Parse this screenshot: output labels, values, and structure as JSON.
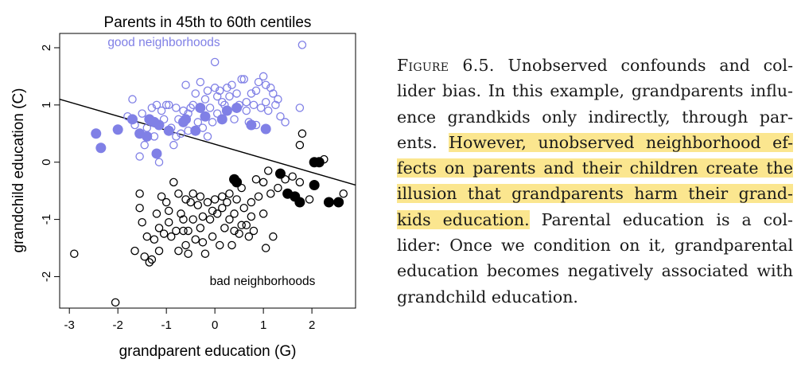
{
  "chart_data": {
    "type": "scatter",
    "title": "Parents in 45th to 60th centiles",
    "xlabel": "grandparent education (G)",
    "ylabel": "grandchild education (C)",
    "xlim": [
      -3.2,
      2.9
    ],
    "ylim": [
      -2.55,
      2.25
    ],
    "xticks": [
      -3,
      -2,
      -1,
      0,
      1,
      2
    ],
    "yticks": [
      -2,
      -1,
      0,
      1,
      2
    ],
    "xtick_labels": [
      "-3",
      "-2",
      "-1",
      "0",
      "1",
      "2"
    ],
    "ytick_labels": [
      "-2",
      "-1",
      "0",
      "1",
      "2"
    ],
    "annotations": [
      {
        "text": "good neighborhoods",
        "color": "#8080e6"
      },
      {
        "text": "bad neighborhoods",
        "color": "#000000"
      }
    ],
    "regression_line": {
      "x": [
        -3.2,
        2.9
      ],
      "y": [
        1.1,
        -0.4
      ]
    },
    "colors": {
      "good": "#8080e6",
      "bad": "#000000"
    },
    "series": [
      {
        "name": "good neighborhoods, parents in 45th-60th centiles",
        "marker": "filled",
        "color": "#8080e6",
        "points": [
          [
            -2.45,
            0.5
          ],
          [
            -2.35,
            0.25
          ],
          [
            -2.0,
            0.57
          ],
          [
            -1.7,
            0.75
          ],
          [
            -1.55,
            0.5
          ],
          [
            -1.4,
            0.45
          ],
          [
            -1.35,
            0.75
          ],
          [
            -1.25,
            0.7
          ],
          [
            -1.15,
            0.65
          ],
          [
            -1.2,
            0.15
          ],
          [
            -0.95,
            0.55
          ],
          [
            -0.65,
            0.7
          ],
          [
            -0.6,
            0.75
          ],
          [
            -0.4,
            0.55
          ],
          [
            -0.3,
            0.95
          ],
          [
            -0.2,
            0.8
          ],
          [
            0.15,
            0.75
          ],
          [
            0.25,
            0.9
          ],
          [
            0.45,
            0.95
          ],
          [
            0.75,
            0.65
          ],
          [
            1.05,
            0.58
          ]
        ]
      },
      {
        "name": "good neighborhoods",
        "marker": "open",
        "color": "#8080e6",
        "points": [
          [
            -1.8,
            0.8
          ],
          [
            -1.7,
            1.1
          ],
          [
            -1.65,
            0.65
          ],
          [
            -1.5,
            0.85
          ],
          [
            -1.45,
            0.3
          ],
          [
            -1.4,
            0.6
          ],
          [
            -1.3,
            0.95
          ],
          [
            -1.2,
            1.0
          ],
          [
            -1.1,
            0.9
          ],
          [
            -1.05,
            0.75
          ],
          [
            -1.0,
            1.0
          ],
          [
            -0.9,
            0.6
          ],
          [
            -0.85,
            0.3
          ],
          [
            -0.8,
            0.95
          ],
          [
            -0.75,
            0.75
          ],
          [
            -0.7,
            0.5
          ],
          [
            -0.65,
            0.9
          ],
          [
            -0.6,
            1.35
          ],
          [
            -0.55,
            0.55
          ],
          [
            -0.5,
            0.95
          ],
          [
            -0.45,
            1.0
          ],
          [
            -0.4,
            1.2
          ],
          [
            -0.35,
            0.7
          ],
          [
            -0.3,
            1.4
          ],
          [
            -0.25,
            0.6
          ],
          [
            -0.2,
            1.1
          ],
          [
            -0.15,
            1.25
          ],
          [
            -0.1,
            0.95
          ],
          [
            -0.05,
            0.7
          ],
          [
            0.0,
            1.75
          ],
          [
            0.0,
            1.3
          ],
          [
            0.05,
            1.15
          ],
          [
            0.1,
            1.25
          ],
          [
            0.15,
            1.05
          ],
          [
            0.2,
            1.0
          ],
          [
            0.3,
            1.15
          ],
          [
            0.35,
            1.35
          ],
          [
            0.4,
            0.75
          ],
          [
            0.45,
            1.2
          ],
          [
            0.5,
            1.0
          ],
          [
            0.55,
            1.45
          ],
          [
            0.6,
            1.45
          ],
          [
            0.65,
            1.05
          ],
          [
            0.7,
            0.7
          ],
          [
            0.75,
            1.2
          ],
          [
            0.8,
            1.0
          ],
          [
            0.85,
            1.25
          ],
          [
            0.9,
            1.4
          ],
          [
            0.95,
            0.95
          ],
          [
            1.0,
            1.5
          ],
          [
            1.05,
            1.05
          ],
          [
            1.1,
            0.9
          ],
          [
            1.15,
            1.3
          ],
          [
            1.2,
            1.2
          ],
          [
            1.25,
            1.0
          ],
          [
            1.3,
            1.1
          ],
          [
            1.35,
            0.8
          ],
          [
            1.45,
            0.7
          ],
          [
            1.75,
            0.95
          ],
          [
            1.8,
            2.05
          ],
          [
            -1.15,
            0.0
          ],
          [
            -0.95,
            1.0
          ],
          [
            -0.55,
            0.85
          ],
          [
            -0.15,
            0.45
          ],
          [
            0.05,
            0.85
          ],
          [
            0.25,
            1.3
          ],
          [
            0.65,
            0.9
          ],
          [
            0.85,
            0.65
          ],
          [
            1.05,
            1.35
          ],
          [
            -1.25,
            0.45
          ],
          [
            -1.55,
            0.1
          ],
          [
            -0.8,
            0.45
          ]
        ]
      },
      {
        "name": "bad neighborhoods, parents in 45th-60th centiles",
        "marker": "filled",
        "color": "#000000",
        "points": [
          [
            0.4,
            -0.3
          ],
          [
            0.45,
            -0.35
          ],
          [
            1.35,
            -0.2
          ],
          [
            1.5,
            -0.55
          ],
          [
            1.65,
            -0.6
          ],
          [
            1.75,
            -0.7
          ],
          [
            2.05,
            0.0
          ],
          [
            2.15,
            0.0
          ],
          [
            2.05,
            -0.4
          ],
          [
            2.35,
            -0.7
          ],
          [
            2.55,
            -0.7
          ]
        ]
      },
      {
        "name": "bad neighborhoods",
        "marker": "open",
        "color": "#000000",
        "points": [
          [
            -2.9,
            -1.6
          ],
          [
            -2.05,
            -2.45
          ],
          [
            -1.65,
            -1.55
          ],
          [
            -1.55,
            -0.55
          ],
          [
            -1.5,
            -1.05
          ],
          [
            -1.45,
            -1.65
          ],
          [
            -1.35,
            -1.75
          ],
          [
            -1.3,
            -1.7
          ],
          [
            -1.25,
            -1.35
          ],
          [
            -1.2,
            -0.9
          ],
          [
            -1.15,
            -1.15
          ],
          [
            -1.1,
            -0.6
          ],
          [
            -1.05,
            -1.25
          ],
          [
            -1.0,
            -0.7
          ],
          [
            -0.95,
            -1.05
          ],
          [
            -0.9,
            -1.3
          ],
          [
            -0.85,
            -0.35
          ],
          [
            -0.8,
            -1.2
          ],
          [
            -0.75,
            -1.55
          ],
          [
            -0.7,
            -0.9
          ],
          [
            -0.65,
            -1.0
          ],
          [
            -0.6,
            -1.45
          ],
          [
            -0.6,
            -0.65
          ],
          [
            -0.55,
            -1.6
          ],
          [
            -0.5,
            -0.7
          ],
          [
            -0.45,
            -1.0
          ],
          [
            -0.4,
            -1.35
          ],
          [
            -0.35,
            -0.75
          ],
          [
            -0.3,
            -1.15
          ],
          [
            -0.25,
            -0.95
          ],
          [
            -0.2,
            -1.6
          ],
          [
            -0.15,
            -0.7
          ],
          [
            -0.1,
            -1.0
          ],
          [
            -0.05,
            -1.3
          ],
          [
            0.0,
            -0.65
          ],
          [
            0.05,
            -0.9
          ],
          [
            0.1,
            -1.45
          ],
          [
            0.15,
            -0.8
          ],
          [
            0.2,
            -1.15
          ],
          [
            0.25,
            -0.7
          ],
          [
            0.3,
            -1.0
          ],
          [
            0.35,
            -1.45
          ],
          [
            0.4,
            -0.9
          ],
          [
            0.45,
            -0.65
          ],
          [
            0.5,
            -1.25
          ],
          [
            0.55,
            -0.45
          ],
          [
            0.6,
            -0.8
          ],
          [
            0.65,
            -1.1
          ],
          [
            0.7,
            -1.3
          ],
          [
            0.75,
            -0.95
          ],
          [
            0.8,
            -1.2
          ],
          [
            0.85,
            -0.3
          ],
          [
            0.9,
            -0.6
          ],
          [
            1.0,
            -0.9
          ],
          [
            1.05,
            -1.5
          ],
          [
            1.1,
            -0.15
          ],
          [
            1.15,
            -0.55
          ],
          [
            1.2,
            -1.3
          ],
          [
            1.3,
            -0.45
          ],
          [
            1.45,
            -0.3
          ],
          [
            1.6,
            -0.25
          ],
          [
            1.75,
            -0.35
          ],
          [
            1.75,
            0.3
          ],
          [
            1.8,
            0.5
          ],
          [
            1.95,
            -0.65
          ],
          [
            2.25,
            0.05
          ],
          [
            2.65,
            -0.55
          ],
          [
            -1.4,
            -1.3
          ],
          [
            -0.95,
            -0.85
          ],
          [
            -0.65,
            -1.2
          ],
          [
            -0.45,
            -0.55
          ],
          [
            -0.25,
            -1.4
          ],
          [
            0.15,
            -0.6
          ],
          [
            0.4,
            -1.2
          ],
          [
            0.55,
            -1.1
          ],
          [
            0.75,
            -0.7
          ],
          [
            -0.3,
            -0.6
          ],
          [
            -0.75,
            -0.55
          ],
          [
            -1.15,
            -1.55
          ],
          [
            -1.55,
            -0.8
          ],
          [
            -0.05,
            -0.85
          ],
          [
            0.3,
            -0.55
          ],
          [
            -0.55,
            -1.2
          ],
          [
            1.0,
            -0.35
          ]
        ]
      }
    ]
  },
  "caption": {
    "figure_label": "Figure 6.5.",
    "l1": "Unobserved confounds and col-",
    "l2": "lider bias. In this example, grandparents influ-",
    "l3": "ence grandkids only indirectly, through par-",
    "l4a": "ents.",
    "l4b": "However, unobserved neighborhood ef-",
    "l5": "fects on parents and their children create the",
    "l6": "illusion that grandparents harm their grand-",
    "l7a": "kids education.",
    "l7b": "Parental education is a col-",
    "l8": "lider: Once we condition on it, grandparental",
    "l9": "education becomes negatively associated with",
    "l10": "grandchild education."
  }
}
